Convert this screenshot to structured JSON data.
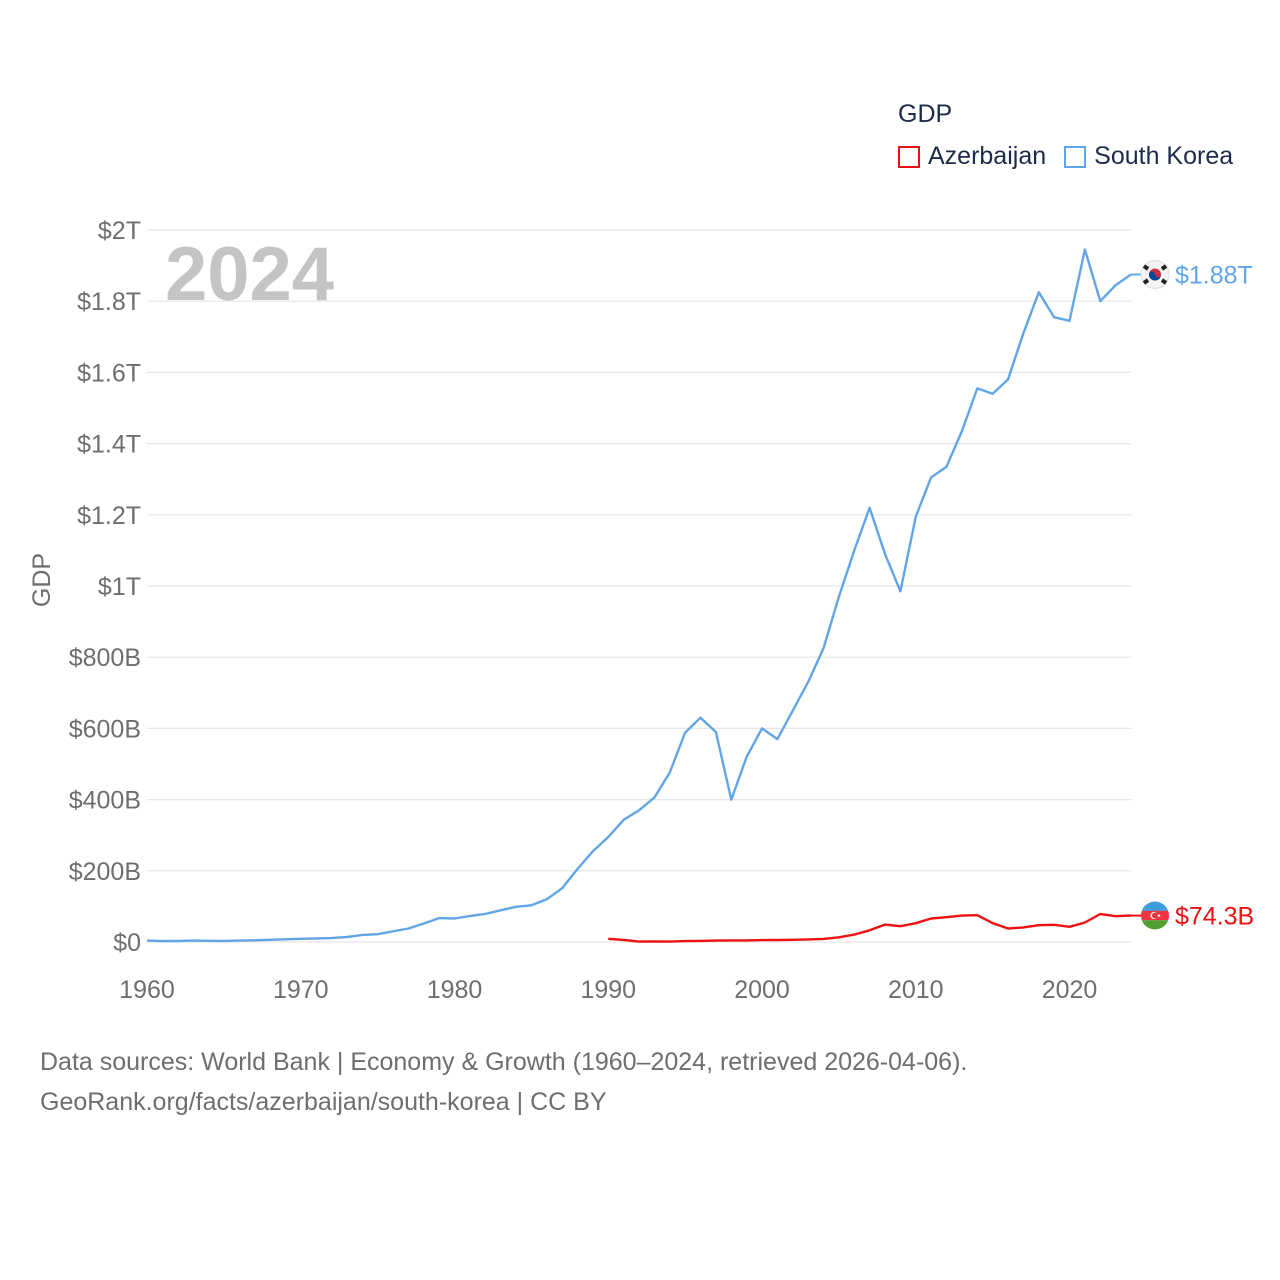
{
  "legend": {
    "title": "GDP",
    "items": [
      {
        "label": "Azerbaijan",
        "color": "#ee1111"
      },
      {
        "label": "South Korea",
        "color": "#62a5e6"
      }
    ]
  },
  "source": {
    "line1": "Data sources: World Bank | Economy & Growth (1960–2024, retrieved 2026-04-06).",
    "line2": "GeoRank.org/facts/azerbaijan/south-korea | CC BY"
  },
  "chart_data": {
    "type": "line",
    "title": "GDP",
    "year_label": "2024",
    "xlabel": "",
    "ylabel": "GDP",
    "xlim": [
      1960,
      2024
    ],
    "ylim": [
      0,
      2000000000000
    ],
    "grid": true,
    "x_ticks": [
      1960,
      1970,
      1980,
      1990,
      2000,
      2010,
      2020
    ],
    "x_tick_labels": [
      "1960",
      "1970",
      "1980",
      "1990",
      "2000",
      "2010",
      "2020"
    ],
    "y_ticks": [
      0,
      200000000000,
      400000000000,
      600000000000,
      800000000000,
      1000000000000,
      1200000000000,
      1400000000000,
      1600000000000,
      1800000000000,
      2000000000000
    ],
    "y_tick_labels": [
      "$0",
      "$200B",
      "$400B",
      "$600B",
      "$800B",
      "$1T",
      "$1.2T",
      "$1.4T",
      "$1.6T",
      "$1.8T",
      "$2T"
    ],
    "series": [
      {
        "name": "South Korea",
        "color": "#62a5e6",
        "end_label": "$1.88T",
        "flag_icon": "south-korea-flag-icon",
        "x": [
          1960,
          1961,
          1962,
          1963,
          1964,
          1965,
          1966,
          1967,
          1968,
          1969,
          1970,
          1971,
          1972,
          1973,
          1974,
          1975,
          1976,
          1977,
          1978,
          1979,
          1980,
          1981,
          1982,
          1983,
          1984,
          1985,
          1986,
          1987,
          1988,
          1989,
          1990,
          1991,
          1992,
          1993,
          1994,
          1995,
          1996,
          1997,
          1998,
          1999,
          2000,
          2001,
          2002,
          2003,
          2004,
          2005,
          2006,
          2007,
          2008,
          2009,
          2010,
          2011,
          2012,
          2013,
          2014,
          2015,
          2016,
          2017,
          2018,
          2019,
          2020,
          2021,
          2022,
          2023,
          2024
        ],
        "values": [
          4000000000,
          2400000000,
          2800000000,
          4000000000,
          3500000000,
          3100000000,
          3800000000,
          4800000000,
          6100000000,
          7700000000,
          9000000000,
          10000000000,
          11000000000,
          14000000000,
          20000000000,
          22000000000,
          30000000000,
          38000000000,
          52000000000,
          67000000000,
          66000000000,
          73000000000,
          79000000000,
          89000000000,
          99000000000,
          103000000000,
          120000000000,
          151000000000,
          205000000000,
          255000000000,
          295000000000,
          343000000000,
          370000000000,
          406000000000,
          476000000000,
          588000000000,
          630000000000,
          590000000000,
          400000000000,
          520000000000,
          600000000000,
          570000000000,
          650000000000,
          730000000000,
          825000000000,
          970000000000,
          1100000000000,
          1220000000000,
          1090000000000,
          985000000000,
          1195000000000,
          1305000000000,
          1335000000000,
          1435000000000,
          1555000000000,
          1540000000000,
          1580000000000,
          1710000000000,
          1825000000000,
          1755000000000,
          1745000000000,
          1945000000000,
          1800000000000,
          1845000000000,
          1875000000000
        ]
      },
      {
        "name": "Azerbaijan",
        "color": "#ee1111",
        "end_label": "$74.3B",
        "flag_icon": "azerbaijan-flag-icon",
        "x": [
          1990,
          1991,
          1992,
          1993,
          1994,
          1995,
          1996,
          1997,
          1998,
          1999,
          2000,
          2001,
          2002,
          2003,
          2004,
          2005,
          2006,
          2007,
          2008,
          2009,
          2010,
          2011,
          2012,
          2013,
          2014,
          2015,
          2016,
          2017,
          2018,
          2019,
          2020,
          2021,
          2022,
          2023,
          2024
        ],
        "values": [
          9000000000,
          6000000000,
          1000000000,
          1500000000,
          1200000000,
          2400000000,
          3200000000,
          4000000000,
          4500000000,
          4600000000,
          5300000000,
          5700000000,
          6200000000,
          7300000000,
          8700000000,
          13200000000,
          20900000000,
          33000000000,
          48900000000,
          44300000000,
          52900000000,
          65900000000,
          69700000000,
          74200000000,
          75200000000,
          53100000000,
          37900000000,
          40900000000,
          47100000000,
          48200000000,
          42700000000,
          54800000000,
          78700000000,
          72400000000,
          74300000000
        ]
      }
    ]
  }
}
